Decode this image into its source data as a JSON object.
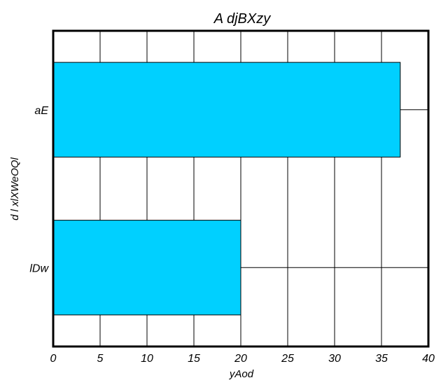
{
  "chart_data": {
    "type": "bar",
    "orientation": "horizontal",
    "title": "A djBXzy",
    "xlabel": "yAod",
    "ylabel": "d l xlXWeOQl",
    "categories": [
      "aE",
      "lDw"
    ],
    "values": [
      37,
      20
    ],
    "xlim": [
      0,
      40
    ],
    "xticks": [
      0,
      5,
      10,
      15,
      20,
      25,
      30,
      35,
      40
    ],
    "grid": true,
    "bar_color": "#00d0ff"
  }
}
